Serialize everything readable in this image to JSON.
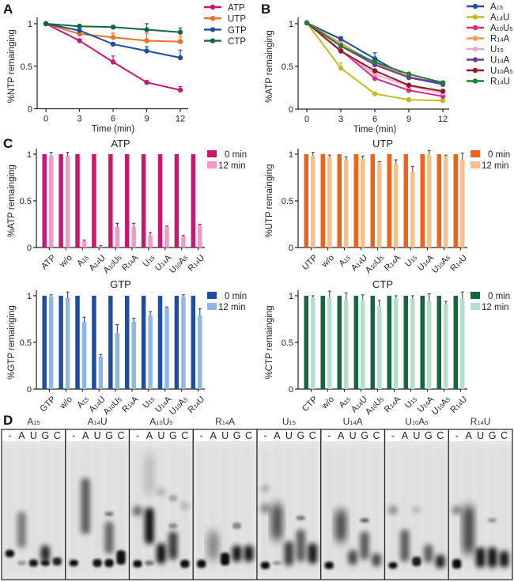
{
  "panels": {
    "A": "A",
    "B": "B",
    "C": "C",
    "D": "D"
  },
  "chart_data": [
    {
      "id": "A",
      "type": "line",
      "title": "",
      "xlabel": "Time (min)",
      "ylabel": "%NTP remainging",
      "x": [
        0,
        3,
        6,
        9,
        12
      ],
      "xticks": [
        "0",
        "3",
        "6",
        "9",
        "12"
      ],
      "yticks": [
        "0",
        "0.5",
        "1"
      ],
      "ylim": [
        0,
        1.05
      ],
      "legend_position": "top-right",
      "series": [
        {
          "name": "ATP",
          "color": "#c8196e",
          "values": [
            1.0,
            0.8,
            0.55,
            0.31,
            0.22
          ],
          "err": [
            0,
            0.02,
            0.07,
            0.02,
            0.04
          ]
        },
        {
          "name": "UTP",
          "color": "#f07025",
          "values": [
            1.0,
            0.88,
            0.84,
            0.8,
            0.79
          ],
          "err": [
            0,
            0.01,
            0.05,
            0.09,
            0.06
          ]
        },
        {
          "name": "GTP",
          "color": "#1f4ea1",
          "values": [
            1.0,
            0.92,
            0.76,
            0.68,
            0.6
          ],
          "err": [
            0,
            0.01,
            0.01,
            0.05,
            0.09
          ]
        },
        {
          "name": "CTP",
          "color": "#17673d",
          "values": [
            1.0,
            0.97,
            0.96,
            0.93,
            0.9
          ],
          "err": [
            0,
            0.02,
            0.02,
            0.07,
            0.05
          ]
        }
      ]
    },
    {
      "id": "B",
      "type": "line",
      "title": "",
      "xlabel": "Time (min)",
      "ylabel": "%ATP remainging",
      "x": [
        0,
        3,
        6,
        9,
        12
      ],
      "xticks": [
        "0",
        "3",
        "6",
        "9",
        "12"
      ],
      "yticks": [
        "0",
        "0.5",
        "1"
      ],
      "ylim": [
        0,
        1.05
      ],
      "legend_position": "top-right",
      "series": [
        {
          "name": "A15",
          "base": "A",
          "sub": "15",
          "tail": "",
          "color": "#1f4ea1",
          "values": [
            1.01,
            0.82,
            0.59,
            0.37,
            0.29
          ],
          "err": [
            0,
            0.03,
            0.07,
            0.02,
            0.02
          ]
        },
        {
          "name": "A14U",
          "base": "A",
          "sub": "14",
          "tail": "U",
          "color": "#bfbd25",
          "values": [
            1.01,
            0.48,
            0.18,
            0.11,
            0.1
          ],
          "err": [
            0,
            0.06,
            0.01,
            0.01,
            0.01
          ]
        },
        {
          "name": "A10U5",
          "base": "A",
          "sub": "10",
          "tail": "U",
          "sub2": "5",
          "color": "#e8257e",
          "values": [
            1.01,
            0.69,
            0.36,
            0.22,
            0.15
          ],
          "err": [
            0,
            0.01,
            0.01,
            0.01,
            0.01
          ]
        },
        {
          "name": "R14A",
          "base": "R",
          "sub": "14",
          "tail": "A",
          "color": "#f59a4e",
          "values": [
            1.01,
            0.77,
            0.54,
            0.38,
            0.3
          ],
          "err": [
            0,
            0.02,
            0.02,
            0.01,
            0.01
          ]
        },
        {
          "name": "U15",
          "base": "U",
          "sub": "15",
          "tail": "",
          "color": "#e8a6cf",
          "values": [
            1.01,
            0.69,
            0.41,
            0.27,
            0.19
          ],
          "err": [
            0,
            0.01,
            0.02,
            0.01,
            0.01
          ]
        },
        {
          "name": "U14A",
          "base": "U",
          "sub": "14",
          "tail": "A",
          "color": "#6a3a9c",
          "values": [
            1.01,
            0.74,
            0.52,
            0.37,
            0.3
          ],
          "err": [
            0,
            0.01,
            0.02,
            0.01,
            0.01
          ]
        },
        {
          "name": "U10A5",
          "base": "U",
          "sub": "10",
          "tail": "A",
          "sub2": "5",
          "color": "#8e1b20",
          "values": [
            1.01,
            0.68,
            0.45,
            0.28,
            0.21
          ],
          "err": [
            0,
            0.01,
            0.01,
            0.01,
            0.01
          ]
        },
        {
          "name": "R14U",
          "base": "R",
          "sub": "14",
          "tail": "U",
          "color": "#1e7f3d",
          "values": [
            1.01,
            0.74,
            0.55,
            0.41,
            0.31
          ],
          "err": [
            0,
            0.02,
            0.02,
            0.01,
            0.01
          ]
        }
      ]
    },
    {
      "id": "C-ATP",
      "type": "bar",
      "title": "ATP",
      "ylabel": "%ATP remainging",
      "yticks": [
        "0",
        "0.5",
        "1"
      ],
      "ylim": [
        0,
        1.05
      ],
      "legend_position": "top-right",
      "categories": [
        "ATP",
        "w/o",
        "A15",
        "A14U",
        "A10U5",
        "R14A",
        "U15",
        "U14A",
        "U10A5",
        "R14U"
      ],
      "series": [
        {
          "name": "0 min",
          "color": "#c8196e",
          "values": [
            1,
            1,
            1,
            1,
            1,
            1,
            1,
            1,
            1,
            1
          ]
        },
        {
          "name": "12 min",
          "color": "#f09ac5",
          "values": [
            0.98,
            0.98,
            0.07,
            0.01,
            0.22,
            0.22,
            0.13,
            0.22,
            0.12,
            0.24
          ],
          "err": [
            0.04,
            0.04,
            0.01,
            0.01,
            0.04,
            0.04,
            0.03,
            0.01,
            0.01,
            0.01
          ]
        }
      ]
    },
    {
      "id": "C-UTP",
      "type": "bar",
      "title": "UTP",
      "ylabel": "%UTP remainging",
      "yticks": [
        "0",
        "0.5",
        "1"
      ],
      "ylim": [
        0,
        1.05
      ],
      "legend_position": "top-right",
      "categories": [
        "UTP",
        "w/o",
        "A15",
        "A14U",
        "A10U5",
        "R14A",
        "U15",
        "U14A",
        "U10A5",
        "R14U"
      ],
      "series": [
        {
          "name": "0 min",
          "color": "#ee6318",
          "values": [
            1,
            1,
            1,
            1,
            1,
            1,
            1,
            1,
            1,
            1
          ]
        },
        {
          "name": "12 min",
          "color": "#f9bf8a",
          "values": [
            0.98,
            0.97,
            0.94,
            0.95,
            0.91,
            0.89,
            0.81,
            0.99,
            0.98,
            0.94
          ],
          "err": [
            0.04,
            0.02,
            0.03,
            0.03,
            0.01,
            0.05,
            0.06,
            0.05,
            0.01,
            0.07
          ]
        }
      ]
    },
    {
      "id": "C-GTP",
      "type": "bar",
      "title": "GTP",
      "ylabel": "%GTP remainging",
      "yticks": [
        "0",
        "0.5",
        "1"
      ],
      "ylim": [
        0,
        1.05
      ],
      "legend_position": "top-right",
      "categories": [
        "GTP",
        "w/o",
        "A15",
        "A14U",
        "A10U5",
        "R14A",
        "U15",
        "U14A",
        "U10A5",
        "R14U"
      ],
      "series": [
        {
          "name": "0 min",
          "color": "#1f4ea1",
          "values": [
            1,
            1,
            1,
            1,
            1,
            1,
            1,
            1,
            1,
            1
          ]
        },
        {
          "name": "12 min",
          "color": "#8fb7e5",
          "values": [
            0.99,
            0.98,
            0.72,
            0.35,
            0.6,
            0.72,
            0.79,
            0.87,
            0.99,
            0.79
          ],
          "err": [
            0.02,
            0.06,
            0.05,
            0.02,
            0.09,
            0.04,
            0.04,
            0.01,
            0.02,
            0.07
          ]
        }
      ]
    },
    {
      "id": "C-CTP",
      "type": "bar",
      "title": "CTP",
      "ylabel": "%CTP remainging",
      "yticks": [
        "0",
        "0.5",
        "1"
      ],
      "ylim": [
        0,
        1.05
      ],
      "legend_position": "top-right",
      "categories": [
        "CTP",
        "w/o",
        "A15",
        "A14U",
        "A10U5",
        "R14A",
        "U15",
        "U14A",
        "U10A5",
        "R14U"
      ],
      "series": [
        {
          "name": "0 min",
          "color": "#17673d",
          "values": [
            1,
            1,
            1,
            1,
            1,
            1,
            1,
            1,
            1,
            1
          ]
        },
        {
          "name": "12 min",
          "color": "#b3e0cc",
          "values": [
            0.98,
            0.98,
            0.96,
            0.96,
            0.89,
            0.98,
            0.97,
            0.94,
            0.91,
            0.97
          ],
          "err": [
            0.02,
            0.07,
            0.07,
            0.05,
            0.06,
            0.02,
            0.03,
            0.08,
            0.03,
            0.07
          ]
        }
      ]
    }
  ],
  "gel": {
    "lanes": [
      "-",
      "A",
      "U",
      "G",
      "C"
    ],
    "blocks": [
      {
        "label": "A15",
        "base": "A",
        "sub": "15",
        "tail": "",
        "sub2": ""
      },
      {
        "label": "A14U",
        "base": "A",
        "sub": "14",
        "tail": "U",
        "sub2": ""
      },
      {
        "label": "A10U5",
        "base": "A",
        "sub": "10",
        "tail": "U",
        "sub2": "5"
      },
      {
        "label": "R14A",
        "base": "R",
        "sub": "14",
        "tail": "A",
        "sub2": ""
      },
      {
        "label": "U15",
        "base": "U",
        "sub": "15",
        "tail": "",
        "sub2": ""
      },
      {
        "label": "U14A",
        "base": "U",
        "sub": "14",
        "tail": "A",
        "sub2": ""
      },
      {
        "label": "U10A5",
        "base": "U",
        "sub": "10",
        "tail": "A",
        "sub2": "5"
      },
      {
        "label": "R14U",
        "base": "R",
        "sub": "14",
        "tail": "U",
        "sub2": ""
      }
    ]
  }
}
